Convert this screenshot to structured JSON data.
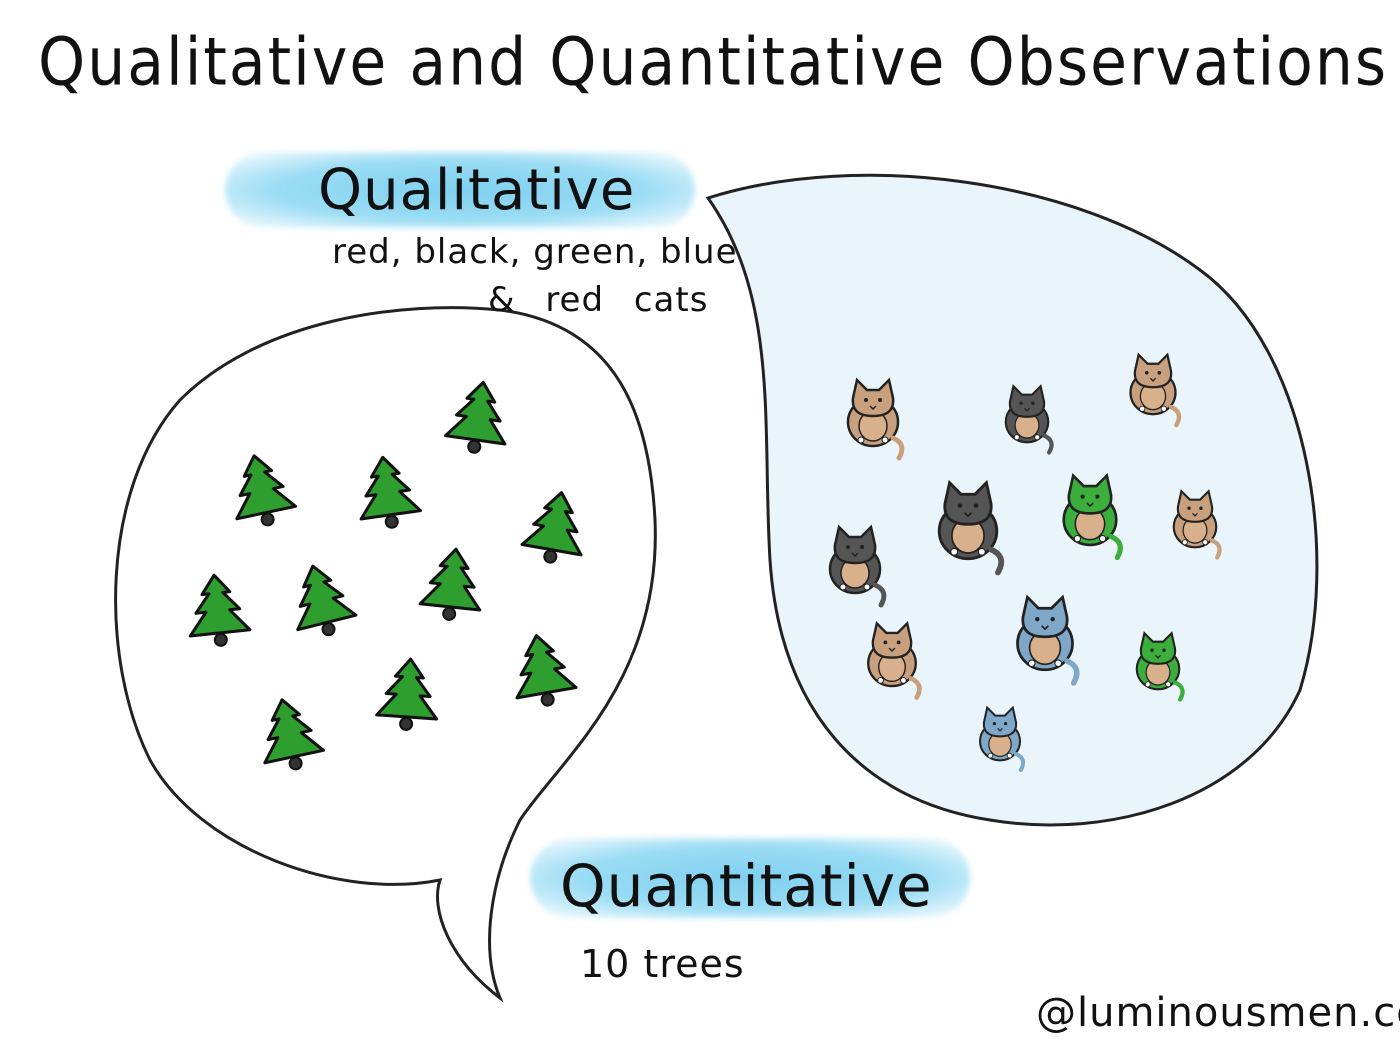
{
  "title": "Qualitative and Quantitative Observations",
  "qualitative": {
    "heading": "Qualitative",
    "line1": "red, black, green, blue",
    "line2": "& red cats"
  },
  "quantitative": {
    "heading": "Quantitative",
    "description": "10 trees"
  },
  "watermark": "@luminousmen.com",
  "colors": {
    "highlight": "#8fd6f2",
    "tree": "#2e9e2e",
    "bubble_fill": "#e9f5fa",
    "cat_tan": "#c9a07e",
    "cat_black": "#555555",
    "cat_green": "#3cae3c",
    "cat_blue": "#7fa8c8"
  },
  "trees": [
    {
      "icon": "tree-icon"
    },
    {
      "icon": "tree-icon"
    },
    {
      "icon": "tree-icon"
    },
    {
      "icon": "tree-icon"
    },
    {
      "icon": "tree-icon"
    },
    {
      "icon": "tree-icon"
    },
    {
      "icon": "tree-icon"
    },
    {
      "icon": "tree-icon"
    },
    {
      "icon": "tree-icon"
    },
    {
      "icon": "tree-icon"
    }
  ],
  "cats": [
    {
      "icon": "cat-icon",
      "color": "tan"
    },
    {
      "icon": "cat-icon",
      "color": "black"
    },
    {
      "icon": "cat-icon",
      "color": "tan"
    },
    {
      "icon": "cat-icon",
      "color": "black"
    },
    {
      "icon": "cat-icon",
      "color": "black"
    },
    {
      "icon": "cat-icon",
      "color": "green"
    },
    {
      "icon": "cat-icon",
      "color": "tan"
    },
    {
      "icon": "cat-icon",
      "color": "tan"
    },
    {
      "icon": "cat-icon",
      "color": "blue"
    },
    {
      "icon": "cat-icon",
      "color": "green"
    },
    {
      "icon": "cat-icon",
      "color": "blue"
    }
  ]
}
